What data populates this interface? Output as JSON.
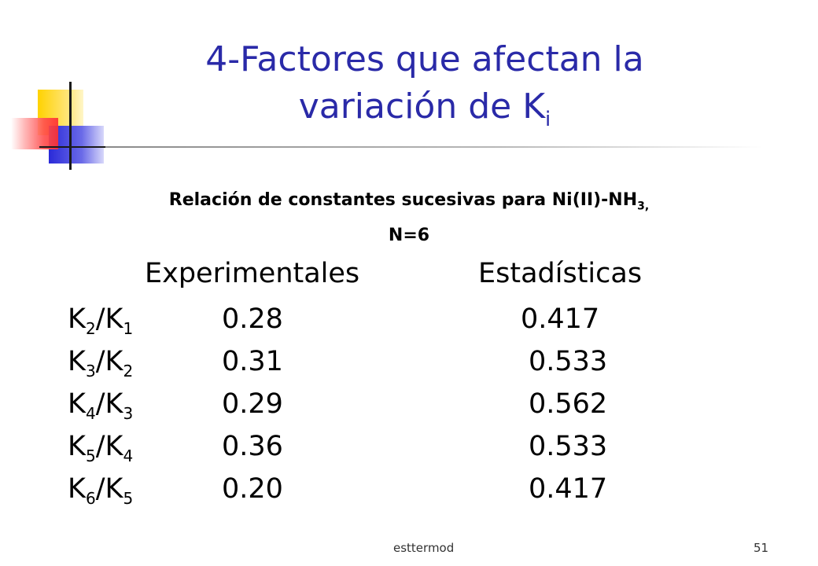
{
  "slide": {
    "title_line1": "4-Factores que afectan la",
    "title_line2_main": "variación de K",
    "title_line2_sub": "i",
    "subtitle_main": "Relación de constantes sucesivas para Ni(II)-NH",
    "subtitle_sub": "3,",
    "subtitle_line2": "N=6",
    "columns": {
      "experimental": "Experimentales",
      "statistical": "Estadísticas"
    },
    "rows": [
      {
        "num": "K",
        "num_sub": "2",
        "sep": "/K",
        "den_sub": "1",
        "experimental": "0.28",
        "statistical": "0.417"
      },
      {
        "num": "K",
        "num_sub": "3",
        "sep": "/K",
        "den_sub": "2",
        "experimental": "0.31",
        "statistical": "0.533"
      },
      {
        "num": "K",
        "num_sub": "4",
        "sep": "/K",
        "den_sub": "3",
        "experimental": "0.29",
        "statistical": "0.562"
      },
      {
        "num": "K",
        "num_sub": "5",
        "sep": "/K",
        "den_sub": "4",
        "experimental": "0.36",
        "statistical": "0.533"
      },
      {
        "num": "K",
        "num_sub": "6",
        "sep": "/K",
        "den_sub": "5",
        "experimental": "0.20",
        "statistical": "0.417"
      }
    ],
    "footer_left": "esttermod",
    "footer_right": "51"
  },
  "colors": {
    "title": "#2a2aa8",
    "body_text": "#000000"
  }
}
